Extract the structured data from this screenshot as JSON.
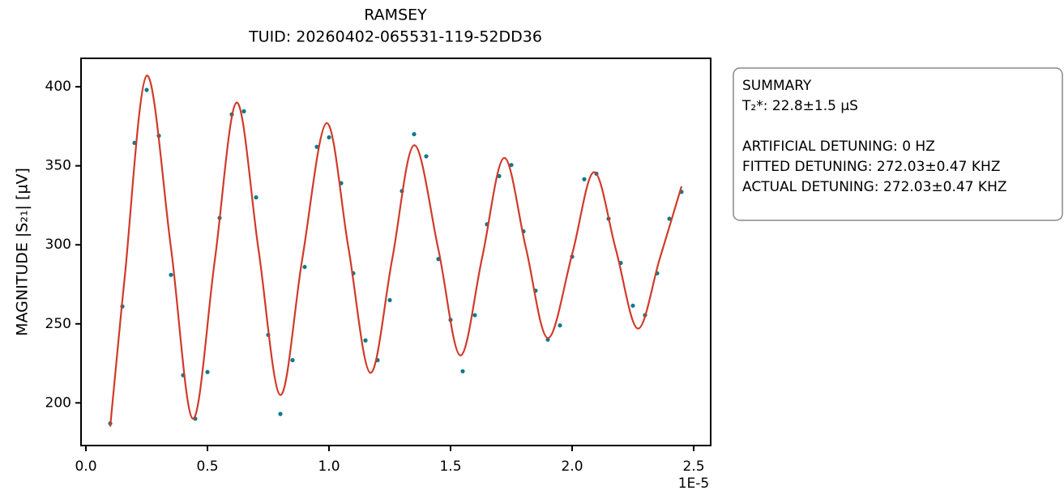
{
  "chart_data": {
    "type": "scatter",
    "title": "RAMSEY",
    "subtitle": "TUID: 20260402-065531-119-52DD36",
    "y_label": "MAGNITUDE |S₂₁| [µV]",
    "x_offset_label": "1E-5",
    "xlim": [
      -0.02,
      2.57
    ],
    "ylim": [
      173,
      418
    ],
    "xticks": [
      {
        "value": 0,
        "label": "0.0"
      },
      0.5,
      {
        "value": 1,
        "label": "1.0"
      },
      1.5,
      {
        "value": 2,
        "label": "2.0"
      },
      2.5
    ],
    "yticks": [
      200,
      250,
      300,
      350,
      400
    ],
    "series": [
      {
        "type": "scatter",
        "color": "#0b7a8a",
        "x": [
          0.1,
          0.15,
          0.2,
          0.25,
          0.3,
          0.35,
          0.4,
          0.45,
          0.5,
          0.55,
          0.6,
          0.65,
          0.7,
          0.75,
          0.8,
          0.85,
          0.9,
          0.95,
          1.0,
          1.05,
          1.1,
          1.15,
          1.2,
          1.25,
          1.3,
          1.35,
          1.4,
          1.45,
          1.5,
          1.55,
          1.6,
          1.65,
          1.7,
          1.75,
          1.8,
          1.85,
          1.9,
          1.95,
          2.0,
          2.05,
          2.1,
          2.15,
          2.2,
          2.25,
          2.3,
          2.35,
          2.4,
          2.45
        ],
        "values": [
          187,
          261,
          364.5,
          398,
          369,
          281,
          217.5,
          190,
          219.5,
          317,
          382.5,
          384.5,
          330,
          243,
          193,
          227,
          286,
          362,
          368,
          339,
          282,
          239.5,
          227,
          265,
          334,
          370,
          356,
          291,
          252.5,
          220,
          255.5,
          313,
          343.5,
          350.5,
          308.5,
          271,
          240,
          249,
          292.5,
          341.5,
          345,
          316.5,
          288.5,
          261.5,
          255.5,
          282,
          316.5,
          333.5
        ]
      },
      {
        "type": "line",
        "color": "#d03a2a",
        "x": [
          0.1,
          0.16,
          0.25,
          0.35,
          0.44,
          0.53,
          0.62,
          0.71,
          0.8,
          0.89,
          0.99,
          1.08,
          1.17,
          1.26,
          1.35,
          1.45,
          1.54,
          1.63,
          1.72,
          1.81,
          1.9,
          2.0,
          2.09,
          2.18,
          2.27,
          2.36,
          2.45
        ],
        "values": [
          185,
          280,
          407,
          298,
          190,
          290,
          390,
          297,
          205,
          291,
          377,
          298,
          219,
          291,
          363,
          297,
          230,
          292,
          355,
          298,
          241,
          294,
          346,
          297,
          247,
          291,
          337
        ]
      }
    ],
    "summary": [
      "SUMMARY",
      "T₂*: 22.8±1.5 µS",
      "ARTIFICIAL DETUNING: 0 HZ",
      "FITTED DETUNING: 272.03±0.47 KHZ",
      "ACTUAL DETUNING: 272.03±0.47 KHZ"
    ]
  }
}
